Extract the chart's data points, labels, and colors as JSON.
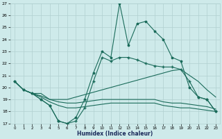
{
  "xlabel": "Humidex (Indice chaleur)",
  "x": [
    0,
    1,
    2,
    3,
    4,
    5,
    6,
    7,
    8,
    9,
    10,
    11,
    12,
    13,
    14,
    15,
    16,
    17,
    18,
    19,
    20,
    21,
    22,
    23
  ],
  "line1": [
    20.5,
    19.8,
    19.5,
    19.0,
    18.5,
    17.2,
    17.0,
    17.5,
    19.0,
    21.2,
    23.0,
    22.5,
    27.0,
    23.5,
    25.3,
    25.5,
    24.7,
    24.0,
    22.5,
    22.2,
    20.0,
    19.2,
    19.0,
    18.0
  ],
  "line2": [
    20.5,
    19.8,
    19.5,
    19.0,
    18.5,
    17.2,
    17.0,
    17.2,
    18.3,
    20.5,
    22.5,
    22.2,
    22.5,
    22.5,
    22.3,
    22.0,
    21.8,
    21.7,
    21.7,
    21.5,
    20.5,
    19.2,
    19.0,
    18.0
  ],
  "line3": [
    20.5,
    19.8,
    19.5,
    19.5,
    19.0,
    19.0,
    19.0,
    19.2,
    19.4,
    19.6,
    19.8,
    20.0,
    20.2,
    20.4,
    20.6,
    20.8,
    21.0,
    21.2,
    21.4,
    21.5,
    21.0,
    20.5,
    19.8,
    19.2
  ],
  "line4": [
    20.5,
    19.8,
    19.5,
    19.3,
    19.0,
    18.8,
    18.7,
    18.7,
    18.8,
    18.9,
    19.0,
    19.0,
    19.0,
    19.0,
    19.0,
    19.0,
    19.0,
    18.8,
    18.7,
    18.7,
    18.6,
    18.5,
    18.4,
    18.2
  ],
  "line5": [
    20.5,
    19.8,
    19.5,
    19.2,
    18.8,
    18.5,
    18.3,
    18.3,
    18.4,
    18.5,
    18.6,
    18.7,
    18.7,
    18.7,
    18.7,
    18.7,
    18.7,
    18.5,
    18.4,
    18.3,
    18.3,
    18.2,
    18.1,
    18.0
  ],
  "color": "#1a6b5a",
  "bg_color": "#ceeaea",
  "grid_color": "#b0d0d0",
  "ylim": [
    17,
    27
  ],
  "xlim": [
    -0.5,
    23.5
  ]
}
